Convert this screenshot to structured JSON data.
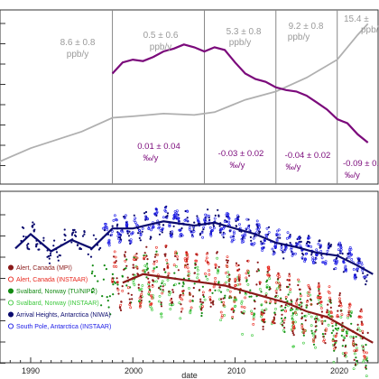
{
  "chart_data": [
    {
      "type": "line",
      "panel": "top",
      "series": [
        {
          "color": "#b0b0b0",
          "x": [
            1985,
            1990,
            1995,
            1998,
            2000,
            2003,
            2006,
            2008,
            2011,
            2014,
            2017,
            2020,
            2022,
            2023
          ],
          "y": [
            -1.0,
            -0.2,
            0.4,
            0.9,
            0.95,
            1.05,
            1.0,
            1.1,
            1.55,
            1.85,
            2.35,
            3.0,
            3.9,
            4.3
          ]
        },
        {
          "color": "#7b0a7b",
          "x": [
            1998.0,
            1999.0,
            2000.0,
            2001.0,
            2002.0,
            2003.0,
            2004.0,
            2005.0,
            2006.0,
            2007.0,
            2008.0,
            2009.0,
            2010.0,
            2011.0,
            2012.0,
            2013.0,
            2014.0,
            2015.0,
            2016.0,
            2017.0,
            2018.0,
            2019.0,
            2020.0,
            2021.0,
            2022.0,
            2023.0
          ],
          "y": [
            2.5,
            2.9,
            3.0,
            2.95,
            3.1,
            3.3,
            3.4,
            3.55,
            3.45,
            3.3,
            3.45,
            3.35,
            2.9,
            2.5,
            2.3,
            2.2,
            2.0,
            1.9,
            1.85,
            1.7,
            1.45,
            1.2,
            0.85,
            0.7,
            0.3,
            0.0
          ]
        }
      ],
      "annotations": [
        {
          "text": "8.6 ± 0.8",
          "color": "#9a9a9a"
        },
        {
          "text": "ppb/y",
          "color": "#9a9a9a"
        },
        {
          "text": "0.5 ± 0.6",
          "color": "#9a9a9a"
        },
        {
          "text": "ppb/y",
          "color": "#9a9a9a"
        },
        {
          "text": "5.3 ± 0.8",
          "color": "#9a9a9a"
        },
        {
          "text": "ppb/y",
          "color": "#9a9a9a"
        },
        {
          "text": "9.2 ± 0.8",
          "color": "#9a9a9a"
        },
        {
          "text": "ppb/y",
          "color": "#9a9a9a"
        },
        {
          "text": "15.4 ±",
          "color": "#9a9a9a"
        },
        {
          "text": "ppb/",
          "color": "#9a9a9a"
        },
        {
          "text": "0.01 ± 0.04",
          "color": "#7b0a7b"
        },
        {
          "text": "‰/y",
          "color": "#7b0a7b"
        },
        {
          "text": "-0.03 ± 0.02",
          "color": "#7b0a7b"
        },
        {
          "text": "‰/y",
          "color": "#7b0a7b"
        },
        {
          "text": "-0.04 ± 0.02",
          "color": "#7b0a7b"
        },
        {
          "text": "‰/y",
          "color": "#7b0a7b"
        },
        {
          "text": "-0.09 ± 0.",
          "color": "#7b0a7b"
        },
        {
          "text": "‰/y",
          "color": "#7b0a7b"
        }
      ],
      "vlines": [
        1998,
        2007,
        2014,
        2020
      ],
      "xlim": [
        1987,
        2024
      ],
      "ylim": [
        -1.5,
        4.8
      ],
      "grid": false
    },
    {
      "type": "scatter",
      "panel": "bottom",
      "xlabel": "date",
      "xticks": [
        1990,
        2000,
        2010,
        2020
      ],
      "xlim": [
        1987,
        2024
      ],
      "ylim": [
        -1.0,
        5.0
      ],
      "legend_position": "lower-left",
      "series": [
        {
          "name": "Alert, Canada (MPI)",
          "color": "#8b1a1a",
          "marker": "filled",
          "x_range": [
            1998,
            2023
          ]
        },
        {
          "name": "Alert, Canada (INSTAAR)",
          "color": "#e8281e",
          "marker": "open",
          "x_range": [
            1998,
            2023
          ]
        },
        {
          "name": "Svalbard, Norway (TU/NIPR)",
          "color": "#138a13",
          "marker": "filled",
          "x_range": [
            1996,
            2023
          ]
        },
        {
          "name": "Svalbard, Norway (INSTAAR)",
          "color": "#3cc83c",
          "marker": "open",
          "x_range": [
            2000,
            2023
          ]
        },
        {
          "name": "Arrival Heights, Antarctica (NIWA)",
          "color": "#0a0a6e",
          "marker": "filled",
          "x_range": [
            1989,
            2023
          ]
        },
        {
          "name": "South Pole, Antarctica (INSTAAR)",
          "color": "#1a1ae6",
          "marker": "open",
          "x_range": [
            1997,
            2023
          ]
        }
      ],
      "trend_lines": [
        {
          "color": "#0a0a6e",
          "x": [
            1988.5,
            1990,
            1992,
            1994,
            1996,
            1998,
            2000,
            2003,
            2006,
            2008,
            2010,
            2012,
            2014,
            2016,
            2018,
            2020,
            2022,
            2023.5
          ],
          "y": [
            3.0,
            3.5,
            2.9,
            3.3,
            3.0,
            3.7,
            3.7,
            3.95,
            3.8,
            3.9,
            3.7,
            3.5,
            3.2,
            3.05,
            2.85,
            2.75,
            2.4,
            2.1
          ]
        },
        {
          "color": "#8b1a1a",
          "x": [
            1999,
            2001,
            2003,
            2005,
            2007,
            2009,
            2011,
            2013,
            2015,
            2017,
            2019,
            2021,
            2023.5
          ],
          "y": [
            1.8,
            2.1,
            2.0,
            1.9,
            1.8,
            1.7,
            1.5,
            1.3,
            1.1,
            0.8,
            0.6,
            0.2,
            -0.3
          ]
        }
      ]
    }
  ]
}
